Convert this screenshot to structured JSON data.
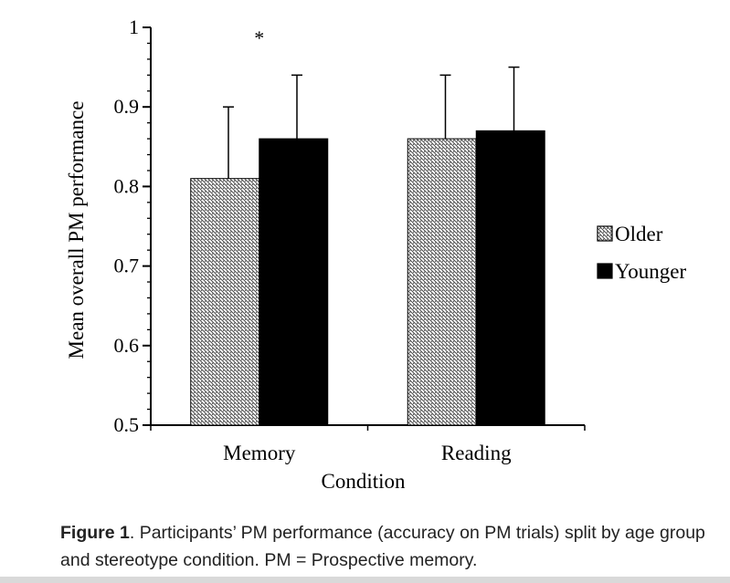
{
  "chart_data": {
    "type": "bar",
    "ylabel": "Mean overall PM performance",
    "xlabel": "Condition",
    "ylim": [
      0.5,
      1
    ],
    "yticks": [
      "0.5",
      "0.6",
      "0.7",
      "0.8",
      "0.9",
      "1"
    ],
    "categories": [
      "Memory",
      "Reading"
    ],
    "series": [
      {
        "name": "Older",
        "values": [
          0.81,
          0.86
        ],
        "error": [
          0.09,
          0.08
        ],
        "pattern": "diagonal-hatch"
      },
      {
        "name": "Younger",
        "values": [
          0.86,
          0.87
        ],
        "error": [
          0.08,
          0.08
        ],
        "pattern": "solid",
        "color": "#000000"
      }
    ],
    "annotations": [
      {
        "text": "*",
        "category": "Memory"
      }
    ],
    "legend": {
      "position": "right"
    },
    "grid": false
  },
  "caption": {
    "label": "Figure 1",
    "text": ". Participants’ PM performance (accuracy on PM trials) split by age group and stereotype condition. PM = Prospective memory."
  }
}
